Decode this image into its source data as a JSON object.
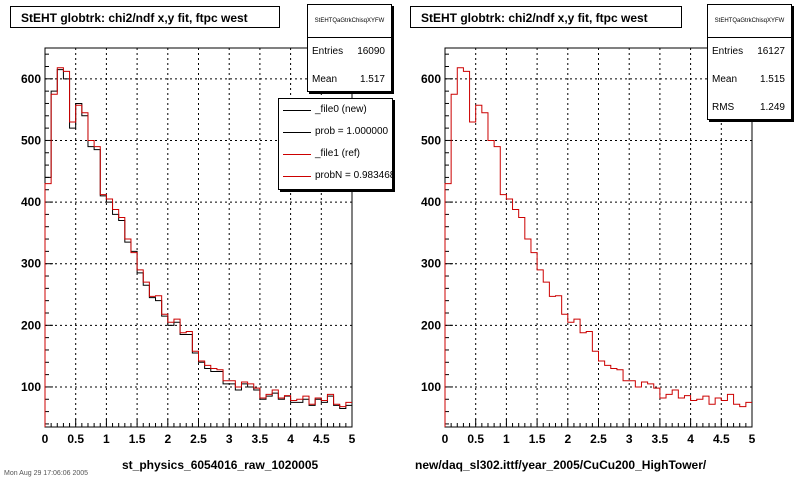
{
  "panels": [
    {
      "title": "StEHT globtrk: chi2/ndf x,y fit, ftpc west",
      "stats": {
        "name": "StEHTQaGtrkChisqXYFW",
        "rows": [
          {
            "key": "Entries",
            "value": "16090"
          },
          {
            "key": "Mean",
            "value": "1.517"
          }
        ]
      },
      "legend": [
        {
          "label": "_file0 (new)",
          "color": "#000000"
        },
        {
          "label": "prob = 1.000000",
          "color": "#000000"
        },
        {
          "label": "_file1 (ref)",
          "color": "#cc0000"
        },
        {
          "label": "probN = 0.983468",
          "color": "#cc0000"
        }
      ],
      "xlabel": "st_physics_6054016_raw_1020005"
    },
    {
      "title": "StEHT globtrk: chi2/ndf x,y fit, ftpc west",
      "stats": {
        "name": "StEHTQaGtrkChisqXYFW",
        "rows": [
          {
            "key": "Entries",
            "value": "16127"
          },
          {
            "key": "Mean",
            "value": "1.515"
          },
          {
            "key": "RMS",
            "value": "1.249"
          }
        ]
      },
      "legend": [],
      "xlabel": "new/daq_sl302.ittf/year_2005/CuCu200_HighTower/"
    }
  ],
  "footer": "Mon Aug 29 17:06:06 2005",
  "chart_data": [
    {
      "type": "histogram",
      "title": "StEHT globtrk: chi2/ndf x,y fit, ftpc west",
      "xlabel": "st_physics_6054016_raw_1020005",
      "xlim": [
        0,
        5
      ],
      "ylim": [
        35,
        650
      ],
      "xticks": [
        0,
        0.5,
        1,
        1.5,
        2,
        2.5,
        3,
        3.5,
        4,
        4.5,
        5
      ],
      "xtick_labels": [
        "0",
        "0.5",
        "1",
        "1.5",
        "2",
        "2.5",
        "3",
        "3.5",
        "4",
        "4.5",
        "5"
      ],
      "yticks": [
        100,
        200,
        300,
        400,
        500,
        600
      ],
      "grid": true,
      "bin_width": 0.1,
      "series": [
        {
          "name": "_file0 (new)",
          "color": "#000000",
          "values": [
            440,
            580,
            615,
            600,
            520,
            560,
            540,
            490,
            485,
            410,
            400,
            380,
            370,
            335,
            320,
            285,
            265,
            245,
            240,
            215,
            200,
            205,
            185,
            185,
            155,
            140,
            130,
            125,
            125,
            105,
            105,
            95,
            105,
            100,
            95,
            80,
            85,
            90,
            80,
            85,
            75,
            75,
            80,
            70,
            80,
            75,
            85,
            70,
            65,
            70
          ]
        },
        {
          "name": "_file1 (ref)",
          "color": "#cc0000",
          "values": [
            430,
            575,
            618,
            612,
            530,
            557,
            545,
            500,
            490,
            412,
            405,
            388,
            375,
            340,
            318,
            290,
            270,
            247,
            248,
            218,
            205,
            210,
            188,
            190,
            158,
            142,
            135,
            130,
            128,
            110,
            110,
            100,
            108,
            105,
            98,
            82,
            88,
            95,
            82,
            86,
            78,
            80,
            85,
            72,
            82,
            78,
            88,
            72,
            68,
            75
          ]
        }
      ]
    },
    {
      "type": "histogram",
      "title": "StEHT globtrk: chi2/ndf x,y fit, ftpc west",
      "xlabel": "new/daq_sl302.ittf/year_2005/CuCu200_HighTower/",
      "xlim": [
        0,
        5
      ],
      "ylim": [
        35,
        650
      ],
      "xticks": [
        0,
        0.5,
        1,
        1.5,
        2,
        2.5,
        3,
        3.5,
        4,
        4.5,
        5
      ],
      "xtick_labels": [
        "0",
        "0.5",
        "1",
        "1.5",
        "2",
        "2.5",
        "3",
        "3.5",
        "4",
        "4.5",
        "5"
      ],
      "yticks": [
        100,
        200,
        300,
        400,
        500,
        600
      ],
      "grid": true,
      "bin_width": 0.1,
      "series": [
        {
          "name": "",
          "color": "#cc0000",
          "values": [
            430,
            575,
            618,
            612,
            530,
            557,
            545,
            500,
            490,
            412,
            405,
            388,
            375,
            340,
            318,
            290,
            270,
            247,
            248,
            218,
            205,
            210,
            188,
            190,
            158,
            142,
            135,
            130,
            128,
            110,
            110,
            100,
            108,
            105,
            98,
            82,
            88,
            95,
            82,
            86,
            78,
            80,
            85,
            72,
            82,
            78,
            88,
            72,
            68,
            75
          ]
        }
      ]
    }
  ]
}
